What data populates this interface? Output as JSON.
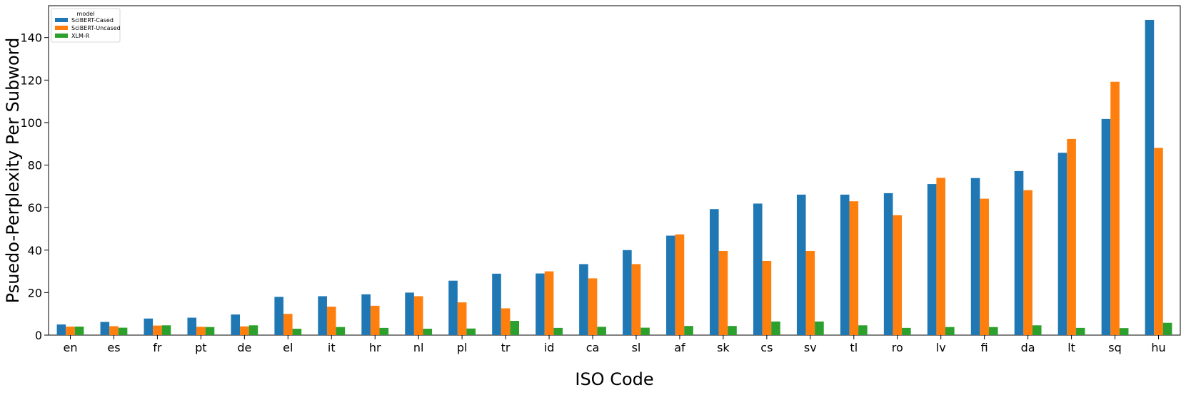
{
  "chart_data": {
    "type": "bar",
    "xlabel": "ISO Code",
    "ylabel": "Psuedo-Perplexity Per Subword",
    "ylim": [
      0,
      155
    ],
    "yticks": [
      0,
      20,
      40,
      60,
      80,
      100,
      120,
      140
    ],
    "grid": false,
    "legend": {
      "title": "model",
      "position": "top-left"
    },
    "categories": [
      "en",
      "es",
      "fr",
      "pt",
      "de",
      "el",
      "it",
      "hr",
      "nl",
      "pl",
      "tr",
      "id",
      "ca",
      "sl",
      "af",
      "sk",
      "cs",
      "sv",
      "tl",
      "ro",
      "lv",
      "fi",
      "da",
      "lt",
      "sq",
      "hu"
    ],
    "series": [
      {
        "name": "SciBERT-Cased",
        "color": "#1f77b4",
        "values": [
          5,
          6.2,
          7.8,
          8.2,
          9.7,
          18,
          18.3,
          19.2,
          20,
          25.6,
          28.9,
          29,
          33.4,
          40,
          46.8,
          59.3,
          61.9,
          66.1,
          66.1,
          66.8,
          71.1,
          73.9,
          77.2,
          85.8,
          101.7,
          148.3
        ]
      },
      {
        "name": "SciBERT-Uncased",
        "color": "#ff7f0e",
        "values": [
          4,
          4.2,
          4.5,
          3.9,
          4.1,
          10,
          13.4,
          13.8,
          18.3,
          15.4,
          12.6,
          30,
          26.7,
          33.4,
          47.4,
          39.6,
          34.9,
          39.6,
          63,
          56.4,
          74,
          64.2,
          68.2,
          92.3,
          119.2,
          88.1
        ]
      },
      {
        "name": "XLM-R",
        "color": "#2ca02c",
        "values": [
          4,
          3.5,
          4.6,
          3.8,
          4.6,
          3,
          3.8,
          3.4,
          3,
          3.1,
          6.7,
          3.4,
          3.9,
          3.5,
          4.3,
          4.3,
          6.4,
          6.4,
          4.6,
          3.4,
          3.8,
          3.8,
          4.6,
          3.4,
          3.3,
          5.8
        ]
      }
    ]
  }
}
